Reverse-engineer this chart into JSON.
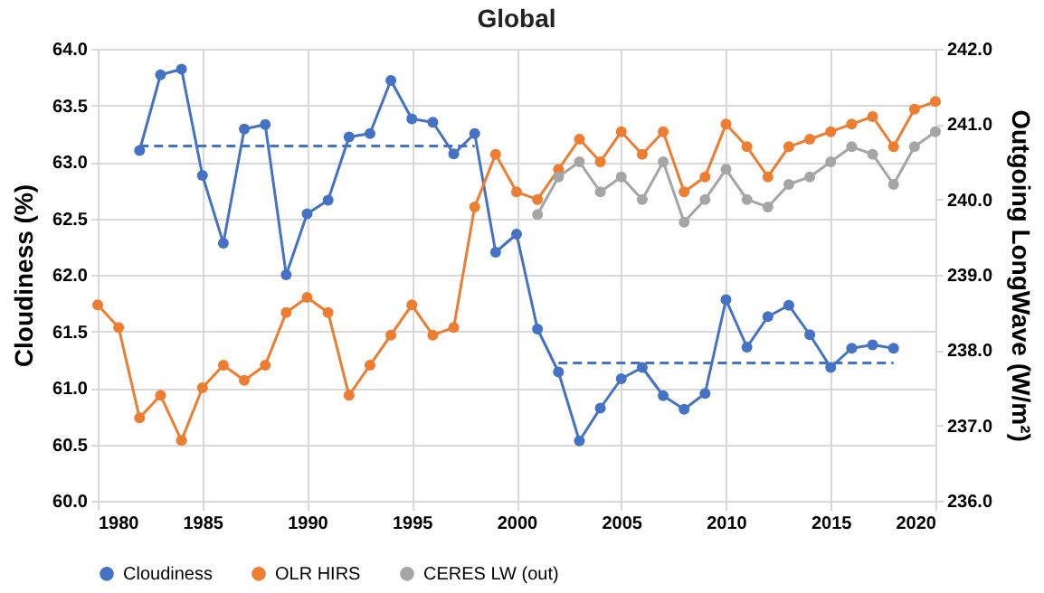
{
  "chart_data": {
    "type": "line",
    "title": "Global",
    "ylabel": "Cloudiness (%)",
    "y2label": "Outgoing LongWave (W/m²)",
    "legend": "bottom",
    "grid": true,
    "marker": "circle",
    "xlim": [
      1980,
      2020
    ],
    "xticks": [
      1980,
      1985,
      1990,
      1995,
      2000,
      2005,
      2010,
      2015,
      2020
    ],
    "ylim": [
      60,
      64
    ],
    "yticks": [
      {
        "value": 60,
        "label": "60.0"
      },
      {
        "value": 60.5,
        "label": "60.5"
      },
      {
        "value": 61,
        "label": "61.0"
      },
      {
        "value": 61.5,
        "label": "61.5"
      },
      {
        "value": 62,
        "label": "62.0"
      },
      {
        "value": 62.5,
        "label": "62.5"
      },
      {
        "value": 63,
        "label": "63.0"
      },
      {
        "value": 63.5,
        "label": "63.5"
      },
      {
        "value": 64,
        "label": "64.0"
      }
    ],
    "y2lim": [
      236,
      242
    ],
    "y2ticks": [
      {
        "value": 236,
        "label": "236.0"
      },
      {
        "value": 237,
        "label": "237.0"
      },
      {
        "value": 238,
        "label": "238.0"
      },
      {
        "value": 239,
        "label": "239.0"
      },
      {
        "value": 240,
        "label": "240.0"
      },
      {
        "value": 241,
        "label": "241.0"
      },
      {
        "value": 242,
        "label": "242.0"
      }
    ],
    "series": [
      {
        "name": "Cloudiness",
        "color": "#4472c4",
        "x": [
          1982,
          1983,
          1984,
          1985,
          1986,
          1987,
          1988,
          1989,
          1990,
          1991,
          1992,
          1993,
          1994,
          1995,
          1996,
          1997,
          1998,
          1999,
          2000,
          2001,
          2002,
          2003,
          2004,
          2005,
          2006,
          2007,
          2008,
          2009,
          2010,
          2011,
          2012,
          2013,
          2014,
          2015,
          2016,
          2017,
          2018
        ],
        "values": [
          63.1,
          63.77,
          63.82,
          62.88,
          62.28,
          63.29,
          63.33,
          62.0,
          62.54,
          62.66,
          63.22,
          63.25,
          63.72,
          63.38,
          63.35,
          63.07,
          63.25,
          62.2,
          62.36,
          61.52,
          61.14,
          60.53,
          60.82,
          61.08,
          61.18,
          60.93,
          60.81,
          60.95,
          61.78,
          61.36,
          61.63,
          61.73,
          61.47,
          61.18,
          61.35,
          61.38,
          61.35
        ]
      },
      {
        "name": "OLR HIRS",
        "color": "#ed7d31",
        "axis": "y2",
        "x": [
          1980,
          1981,
          1982,
          1983,
          1984,
          1985,
          1986,
          1987,
          1988,
          1989,
          1990,
          1991,
          1992,
          1993,
          1994,
          1995,
          1996,
          1997,
          1998,
          1999,
          2000,
          2001,
          2002,
          2003,
          2004,
          2005,
          2006,
          2007,
          2008,
          2009,
          2010,
          2011,
          2012,
          2013,
          2014,
          2015,
          2016,
          2017,
          2018,
          2019,
          2020
        ],
        "values": [
          238.6,
          238.3,
          237.1,
          237.4,
          236.8,
          237.5,
          237.8,
          237.6,
          237.8,
          238.5,
          238.7,
          238.5,
          237.4,
          237.8,
          238.2,
          238.6,
          238.2,
          238.3,
          239.9,
          240.6,
          240.1,
          240.0,
          240.4,
          240.8,
          240.5,
          240.9,
          240.6,
          240.9,
          240.1,
          240.3,
          241.0,
          240.7,
          240.3,
          240.7,
          240.8,
          240.9,
          241.0,
          241.1,
          240.7,
          241.2,
          241.3
        ]
      },
      {
        "name": "CERES LW (out)",
        "color": "#a5a5a5",
        "axis": "y2",
        "x": [
          2001,
          2002,
          2003,
          2004,
          2005,
          2006,
          2007,
          2008,
          2009,
          2010,
          2011,
          2012,
          2013,
          2014,
          2015,
          2016,
          2017,
          2018,
          2019,
          2020
        ],
        "values": [
          239.8,
          240.3,
          240.5,
          240.1,
          240.3,
          240.0,
          240.5,
          239.7,
          240.0,
          240.4,
          240.0,
          239.9,
          240.2,
          240.3,
          240.5,
          240.7,
          240.6,
          240.2,
          240.7,
          240.9
        ]
      },
      {
        "color": "#4472c4",
        "line_style": "dashed",
        "marker": "none",
        "x": [
          1982,
          1998
        ],
        "values": [
          63.14,
          63.14
        ]
      },
      {
        "color": "#4472c4",
        "line_style": "dashed",
        "marker": "none",
        "x": [
          2002,
          2018
        ],
        "values": [
          61.22,
          61.22
        ]
      }
    ]
  }
}
